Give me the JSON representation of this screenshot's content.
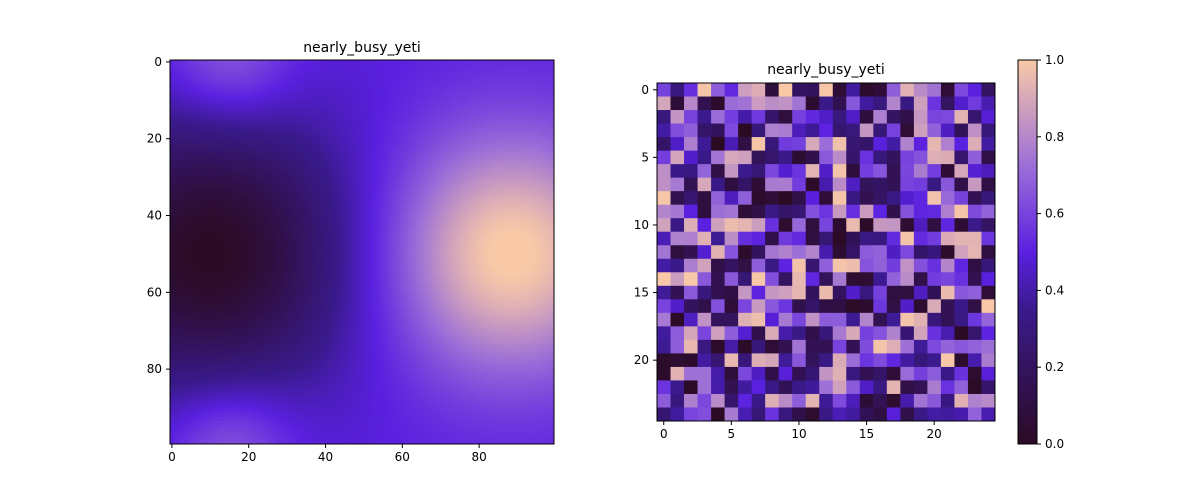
{
  "colormap": {
    "name": "custom-purple",
    "stops": [
      {
        "v": 0.0,
        "color": "#2b0b24"
      },
      {
        "v": 0.35,
        "color": "#3a1a8c"
      },
      {
        "v": 0.5,
        "color": "#5a20e0"
      },
      {
        "v": 0.72,
        "color": "#9a6dd8"
      },
      {
        "v": 1.0,
        "color": "#f9c9a7"
      }
    ]
  },
  "chart_data": [
    {
      "type": "heatmap",
      "title": "nearly_busy_yeti",
      "grid": false,
      "rows": 100,
      "cols": 100,
      "vmin": 0,
      "vmax": 1,
      "field": {
        "description_terms": "smooth field: low near (x=10,y=50), high near (x=88,y=50), brighter near top-left and bottom-left corners",
        "low_center": [
          10,
          50
        ],
        "high_center": [
          88,
          50
        ]
      },
      "xticks": [
        0,
        20,
        40,
        60,
        80
      ],
      "yticks": [
        0,
        20,
        40,
        60,
        80
      ],
      "xlim": [
        -0.5,
        99.5
      ],
      "ylim": [
        99.5,
        -0.5
      ]
    },
    {
      "type": "heatmap",
      "title": "nearly_busy_yeti",
      "grid": false,
      "rows": 25,
      "cols": 25,
      "vmin": 0,
      "vmax": 1,
      "values_note": "random uniform values in [0,1]",
      "seed": 7,
      "xticks": [
        0,
        5,
        10,
        15,
        20
      ],
      "yticks": [
        0,
        5,
        10,
        15,
        20
      ],
      "xlim": [
        -0.5,
        24.5
      ],
      "ylim": [
        24.5,
        -0.5
      ],
      "colorbar": {
        "ticks": [
          "0.0",
          "0.2",
          "0.4",
          "0.6",
          "0.8",
          "1.0"
        ],
        "tick_values": [
          0,
          0.2,
          0.4,
          0.6,
          0.8,
          1.0
        ]
      }
    }
  ]
}
